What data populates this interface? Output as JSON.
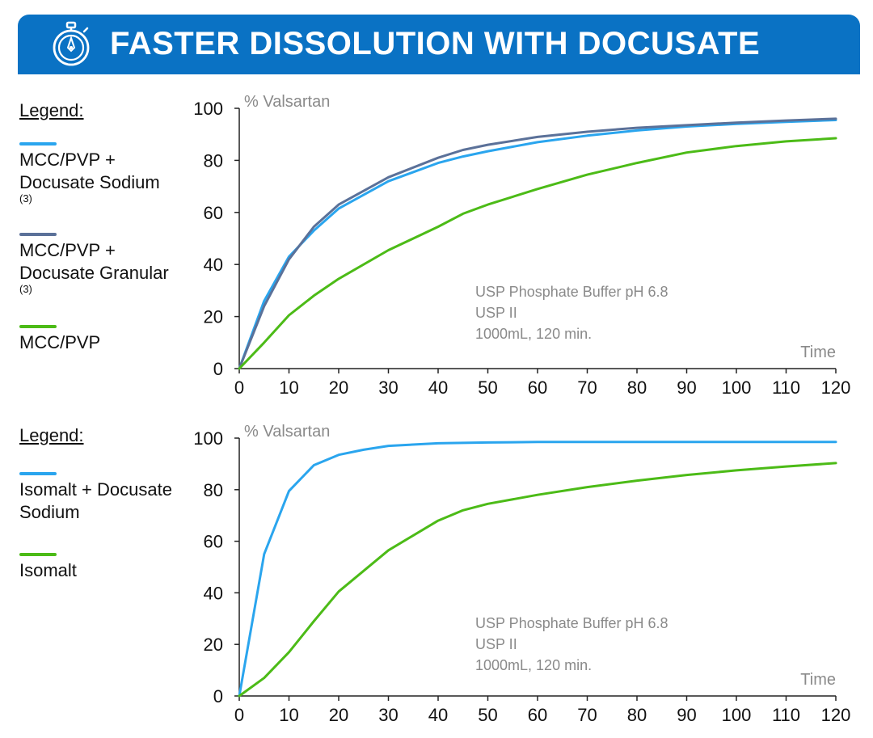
{
  "header": {
    "title": "FASTER DISSOLUTION WITH DOCUSATE"
  },
  "colors": {
    "header_bg": "#0a72c4",
    "light_blue": "#2aa5ee",
    "dark_blue": "#5b7199",
    "green": "#4cbb17",
    "gray_text": "#8a8a8a"
  },
  "chart_data": [
    {
      "type": "line",
      "ylabel": "% Valsartan",
      "xlabel": "Time",
      "xlim": [
        0,
        120
      ],
      "ylim": [
        0,
        100
      ],
      "x_ticks": [
        0,
        10,
        20,
        30,
        40,
        50,
        60,
        70,
        80,
        90,
        100,
        110,
        120
      ],
      "y_ticks": [
        0,
        20,
        40,
        60,
        80,
        100
      ],
      "legend_heading": "Legend:",
      "annotation": [
        "USP Phosphate Buffer pH 6.8",
        "USP II",
        "1000mL, 120 min."
      ],
      "series": [
        {
          "name": "MCC/PVP + Docusate Sodium",
          "note": "(3)",
          "color": "#2aa5ee",
          "x": [
            0,
            5,
            10,
            15,
            20,
            30,
            40,
            45,
            50,
            60,
            70,
            80,
            90,
            100,
            110,
            120
          ],
          "y": [
            0,
            26,
            43,
            53,
            61.5,
            72,
            79,
            81.5,
            83.5,
            87,
            89.5,
            91.5,
            93,
            94,
            94.8,
            95.5
          ]
        },
        {
          "name": "MCC/PVP + Docusate Granular",
          "note": "(3)",
          "color": "#5b7199",
          "x": [
            0,
            5,
            10,
            15,
            20,
            30,
            40,
            45,
            50,
            60,
            70,
            80,
            90,
            100,
            110,
            120
          ],
          "y": [
            0,
            24,
            42,
            54.5,
            63,
            73.5,
            81,
            84,
            86,
            89,
            91,
            92.5,
            93.5,
            94.5,
            95.3,
            96
          ]
        },
        {
          "name": "MCC/PVP",
          "note": "",
          "color": "#4cbb17",
          "x": [
            0,
            5,
            10,
            15,
            20,
            30,
            40,
            45,
            50,
            60,
            70,
            80,
            90,
            100,
            110,
            120
          ],
          "y": [
            0,
            10,
            20.5,
            28,
            34.5,
            45.5,
            54.5,
            59.5,
            63,
            69,
            74.5,
            79,
            83,
            85.5,
            87.3,
            88.5
          ]
        }
      ]
    },
    {
      "type": "line",
      "ylabel": "% Valsartan",
      "xlabel": "Time",
      "xlim": [
        0,
        120
      ],
      "ylim": [
        0,
        100
      ],
      "x_ticks": [
        0,
        10,
        20,
        30,
        40,
        50,
        60,
        70,
        80,
        90,
        100,
        110,
        120
      ],
      "y_ticks": [
        0,
        20,
        40,
        60,
        80,
        100
      ],
      "legend_heading": "Legend:",
      "annotation": [
        "USP Phosphate Buffer pH 6.8",
        "USP II",
        "1000mL, 120 min."
      ],
      "series": [
        {
          "name": "Isomalt + Docusate Sodium",
          "note": "",
          "color": "#2aa5ee",
          "x": [
            0,
            5,
            10,
            15,
            20,
            25,
            30,
            40,
            50,
            60,
            70,
            80,
            90,
            100,
            110,
            120
          ],
          "y": [
            0,
            55,
            79.5,
            89.5,
            93.5,
            95.5,
            97,
            98,
            98.3,
            98.5,
            98.5,
            98.5,
            98.5,
            98.5,
            98.5,
            98.5
          ]
        },
        {
          "name": "Isomalt",
          "note": "",
          "color": "#4cbb17",
          "x": [
            0,
            5,
            10,
            15,
            20,
            30,
            40,
            45,
            50,
            60,
            70,
            80,
            90,
            100,
            110,
            120
          ],
          "y": [
            0,
            7,
            17,
            29,
            40.5,
            56.5,
            68,
            72,
            74.5,
            78,
            81,
            83.5,
            85.7,
            87.5,
            89,
            90.3
          ]
        }
      ]
    }
  ]
}
